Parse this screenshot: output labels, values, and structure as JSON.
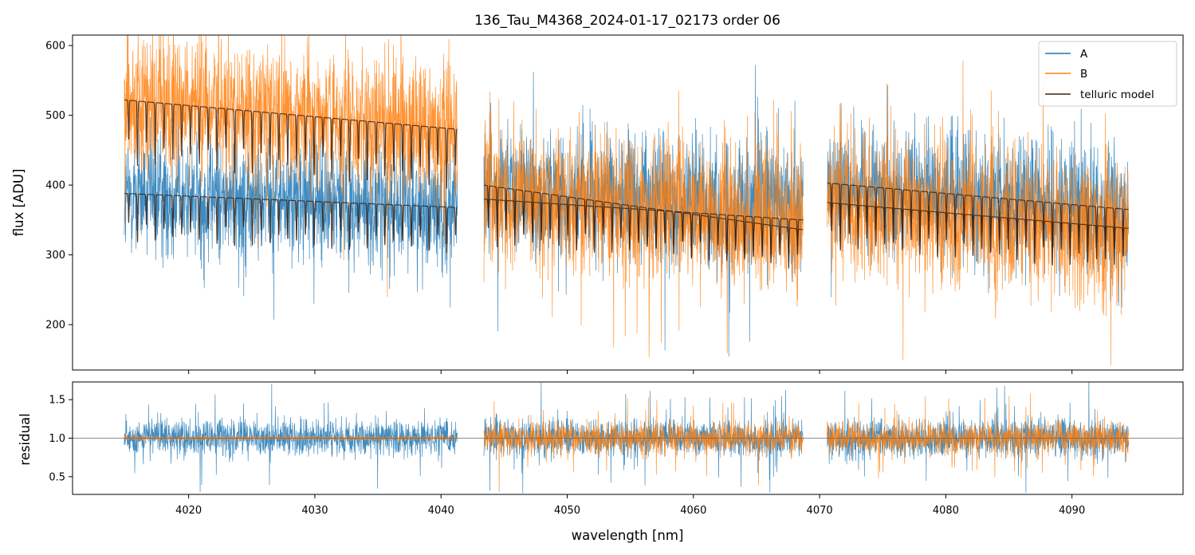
{
  "chart_data": [
    {
      "type": "line",
      "panel": "top",
      "title": "136_Tau_M4368_2024-01-17_02173  order 06",
      "xlabel": "",
      "ylabel": "flux [ADU]",
      "xlim": [
        4010.8,
        4098.8
      ],
      "ylim": [
        135,
        615
      ],
      "yticks": [
        200,
        300,
        400,
        500,
        600
      ],
      "xticks": [
        4020,
        4030,
        4040,
        4050,
        4060,
        4070,
        4080,
        4090
      ],
      "xtick_labels_visible": false,
      "grid": false,
      "legend_position": "top-right",
      "segments": [
        [
          4014.9,
          4041.3
        ],
        [
          4043.4,
          4068.7
        ],
        [
          4070.6,
          4094.5
        ]
      ],
      "series": [
        {
          "name": "A",
          "color": "#1f77b4",
          "kind": "noisy spectrum",
          "baseline_x": [
            4015,
            4041,
            4043.5,
            4068.6,
            4070.7,
            4094.4
          ],
          "baseline_y": [
            385,
            365,
            395,
            365,
            400,
            365
          ],
          "noise_amplitude": 80
        },
        {
          "name": "B",
          "color": "#ff7f0e",
          "kind": "noisy spectrum",
          "baseline_x": [
            4015,
            4041,
            4043.5,
            4068.6,
            4070.7,
            4094.4
          ],
          "baseline_y": [
            520,
            480,
            385,
            345,
            375,
            335
          ],
          "noise_amplitude": 95
        },
        {
          "name": "telluric model",
          "color": "#3a2416",
          "kind": "model continuum with absorption lines",
          "lines": [
            {
              "baseline_x": [
                4015,
                4041.3,
                4043.4,
                4068.7,
                4070.6,
                4094.5
              ],
              "baseline_y": [
                388,
                368,
                400,
                336,
                375,
                338
              ]
            },
            {
              "baseline_x": [
                4015,
                4041.3,
                4043.4,
                4068.7,
                4070.6,
                4094.5
              ],
              "baseline_y": [
                522,
                480,
                380,
                350,
                403,
                365
              ]
            }
          ],
          "line_spacing": 0.7,
          "line_depth": 0.18
        }
      ]
    },
    {
      "type": "line",
      "panel": "bottom",
      "title": "",
      "xlabel": "wavelength [nm]",
      "ylabel": "residual",
      "xlim": [
        4010.8,
        4098.8
      ],
      "ylim": [
        0.27,
        1.73
      ],
      "yticks": [
        0.5,
        1.0,
        1.5
      ],
      "ytick_labels": [
        "0.5",
        "1.0",
        "1.5"
      ],
      "xticks": [
        4020,
        4030,
        4040,
        4050,
        4060,
        4070,
        4080,
        4090
      ],
      "xtick_labels": [
        "4020",
        "4030",
        "4040",
        "4050",
        "4060",
        "4070",
        "4080",
        "4090"
      ],
      "reference_line": 1.0,
      "grid": false,
      "series": [
        {
          "name": "A",
          "color": "#1f77b4",
          "center": 1.0,
          "noise_amplitude": 0.5
        },
        {
          "name": "B",
          "color": "#ff7f0e",
          "center": 1.0,
          "noise_amplitude": 0.42
        }
      ]
    }
  ],
  "legend": {
    "items": [
      {
        "label": "A",
        "color": "#1f77b4"
      },
      {
        "label": "B",
        "color": "#ff7f0e"
      },
      {
        "label": "telluric model",
        "color": "#3a2416"
      }
    ]
  }
}
